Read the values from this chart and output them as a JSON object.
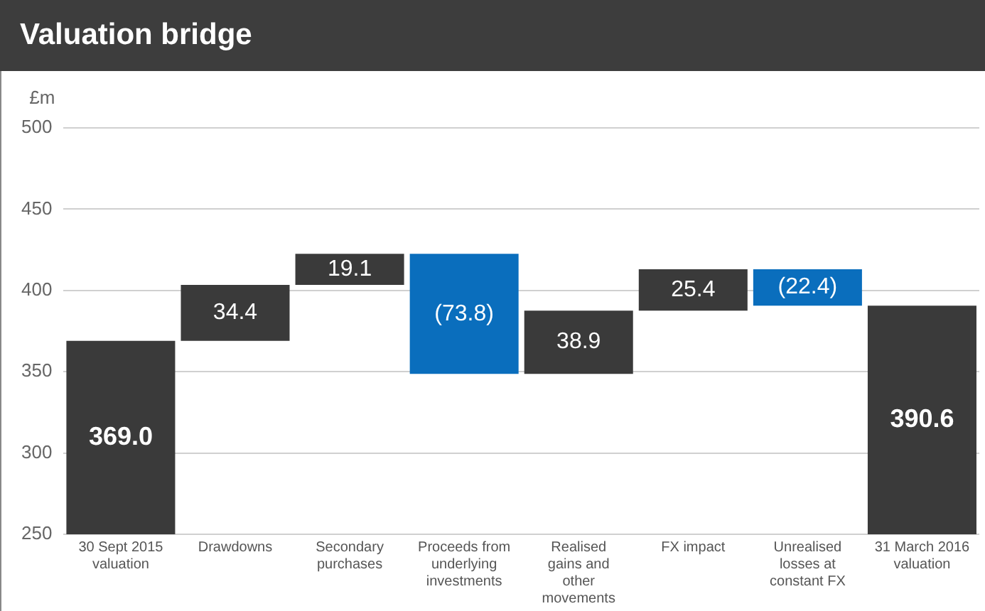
{
  "chart_data": {
    "type": "bar",
    "title": "Valuation bridge",
    "ylabel": "£m",
    "categories": [
      "30 Sept 2015 valuation",
      "Drawdowns",
      "Secondary purchases",
      "Proceeds from underlying investments",
      "Realised gains and other movements",
      "FX impact",
      "Unrealised losses at constant FX",
      "31 March 2016 valuation"
    ],
    "values": [
      369.0,
      34.4,
      19.1,
      -73.8,
      38.9,
      25.4,
      -22.4,
      390.6
    ],
    "base": [
      0,
      369.0,
      403.4,
      422.5,
      348.7,
      387.6,
      413.0,
      0
    ],
    "colors": [
      "#3a3a3a",
      "#3a3a3a",
      "#3a3a3a",
      "#0a6ebd",
      "#3a3a3a",
      "#3a3a3a",
      "#0a6ebd",
      "#3a3a3a"
    ],
    "value_labels": [
      "369.0",
      "34.4",
      "19.1",
      "(73.8)",
      "38.9",
      "25.4",
      "(22.4)",
      "390.6"
    ],
    "ylim": [
      250,
      500
    ],
    "yticks": [
      250,
      300,
      350,
      400,
      450,
      500
    ],
    "grid": "y"
  }
}
